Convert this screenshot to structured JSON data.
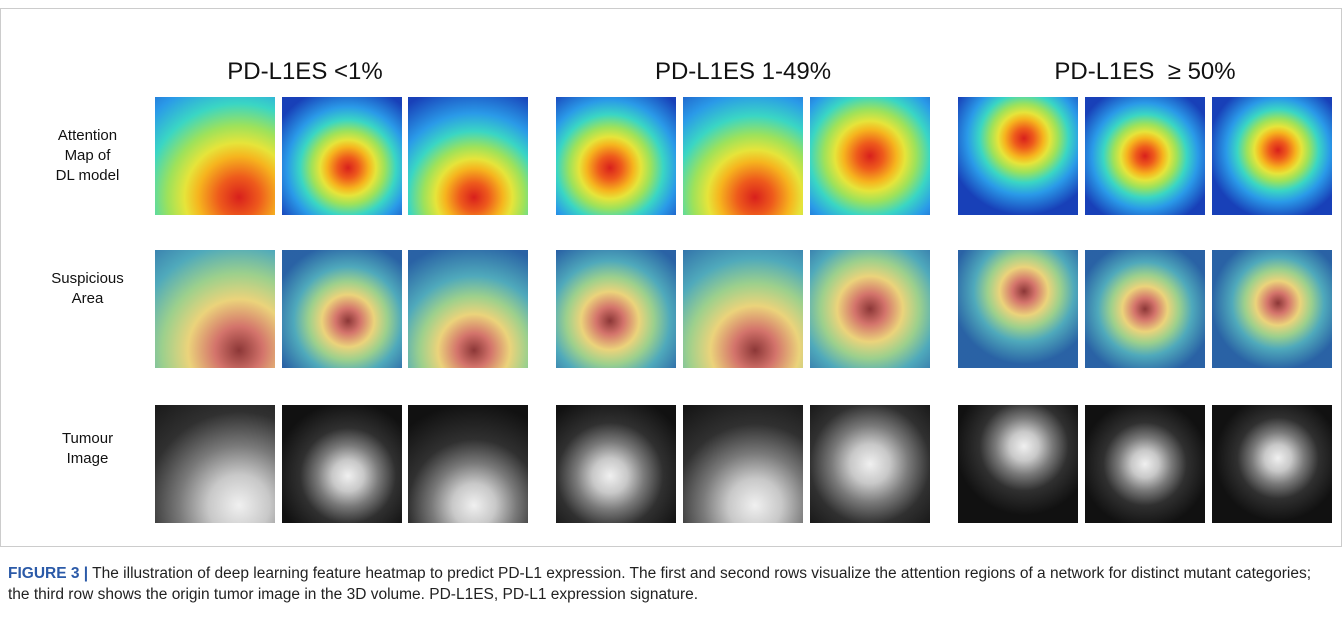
{
  "figure": {
    "column_headers": [
      "PD-L1ES <1%",
      "PD-L1ES 1-49%",
      "PD-L1ES  ≥ 50%"
    ],
    "row_labels": [
      "Attention\nMap of\nDL model",
      "Suspicious\nArea",
      "Tumour\nImage"
    ],
    "caption": {
      "label": "FIGURE 3 |",
      "text": "The illustration of deep learning feature heatmap to predict PD-L1 expression. The first and second rows visualize the attention regions of a network for distinct mutant categories; the third row shows the origin tumor image in the 3D volume. PD-L1ES, PD-L1 expression signature."
    }
  }
}
